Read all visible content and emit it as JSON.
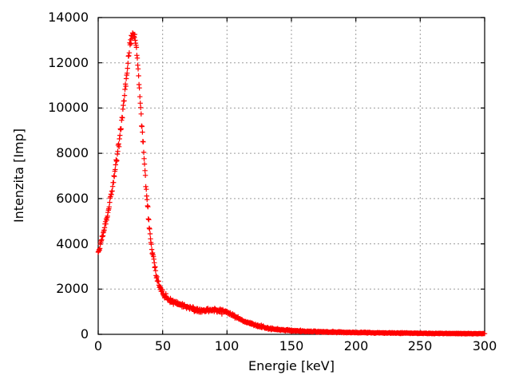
{
  "chart_data": {
    "type": "scatter",
    "title": "",
    "xlabel": "Energie [keV]",
    "ylabel": "Intenzita [Imp]",
    "xlim": [
      0,
      300
    ],
    "ylim": [
      0,
      14000
    ],
    "x_ticks": [
      0,
      50,
      100,
      150,
      200,
      250,
      300
    ],
    "y_ticks": [
      0,
      2000,
      4000,
      6000,
      8000,
      10000,
      12000,
      14000
    ],
    "grid": true,
    "legend": "none",
    "marker": {
      "shape": "plus",
      "color": "#ff0000",
      "size": 7
    },
    "grid_color": "#9c9c9c",
    "axis_color": "#000000",
    "background": "#ffffff",
    "sample_step_kev": 0.33,
    "noise_sigma_scale": 1.35,
    "envelope_points": [
      [
        0,
        3600
      ],
      [
        1,
        3800
      ],
      [
        2,
        4000
      ],
      [
        3,
        4250
      ],
      [
        4,
        4500
      ],
      [
        5,
        4800
      ],
      [
        6,
        5050
      ],
      [
        7,
        5300
      ],
      [
        8,
        5550
      ],
      [
        9,
        5850
      ],
      [
        10,
        6150
      ],
      [
        11,
        6500
      ],
      [
        12,
        6850
      ],
      [
        13,
        7250
      ],
      [
        14,
        7650
      ],
      [
        15,
        8050
      ],
      [
        16,
        8450
      ],
      [
        17,
        8850
      ],
      [
        18,
        9300
      ],
      [
        19,
        9800
      ],
      [
        20,
        10300
      ],
      [
        21,
        10850
      ],
      [
        22,
        11400
      ],
      [
        23,
        11950
      ],
      [
        24,
        12450
      ],
      [
        25,
        12850
      ],
      [
        26,
        13100
      ],
      [
        27,
        13250
      ],
      [
        28,
        13200
      ],
      [
        29,
        12900
      ],
      [
        30,
        12400
      ],
      [
        31,
        11700
      ],
      [
        32,
        10800
      ],
      [
        33,
        9900
      ],
      [
        34,
        9050
      ],
      [
        35,
        8300
      ],
      [
        36,
        7450
      ],
      [
        37,
        6650
      ],
      [
        38,
        5900
      ],
      [
        39,
        5200
      ],
      [
        40,
        4600
      ],
      [
        41,
        4050
      ],
      [
        42,
        3600
      ],
      [
        43,
        3250
      ],
      [
        44,
        2950
      ],
      [
        45,
        2650
      ],
      [
        46,
        2400
      ],
      [
        47,
        2225
      ],
      [
        48,
        2075
      ],
      [
        49,
        1950
      ],
      [
        50,
        1850
      ],
      [
        52,
        1700
      ],
      [
        54,
        1590
      ],
      [
        56,
        1500
      ],
      [
        58,
        1440
      ],
      [
        60,
        1390
      ],
      [
        63,
        1320
      ],
      [
        66,
        1255
      ],
      [
        70,
        1185
      ],
      [
        74,
        1125
      ],
      [
        78,
        1085
      ],
      [
        82,
        1070
      ],
      [
        86,
        1080
      ],
      [
        90,
        1090
      ],
      [
        94,
        1070
      ],
      [
        98,
        1005
      ],
      [
        102,
        910
      ],
      [
        106,
        795
      ],
      [
        110,
        685
      ],
      [
        114,
        575
      ],
      [
        118,
        480
      ],
      [
        122,
        400
      ],
      [
        126,
        340
      ],
      [
        130,
        290
      ],
      [
        135,
        245
      ],
      [
        140,
        212
      ],
      [
        145,
        188
      ],
      [
        150,
        168
      ],
      [
        155,
        152
      ],
      [
        160,
        140
      ],
      [
        170,
        118
      ],
      [
        180,
        102
      ],
      [
        190,
        90
      ],
      [
        200,
        80
      ],
      [
        210,
        72
      ],
      [
        220,
        64
      ],
      [
        230,
        57
      ],
      [
        240,
        51
      ],
      [
        250,
        46
      ],
      [
        260,
        42
      ],
      [
        270,
        38
      ],
      [
        280,
        35
      ],
      [
        290,
        32
      ],
      [
        300,
        30
      ]
    ]
  }
}
